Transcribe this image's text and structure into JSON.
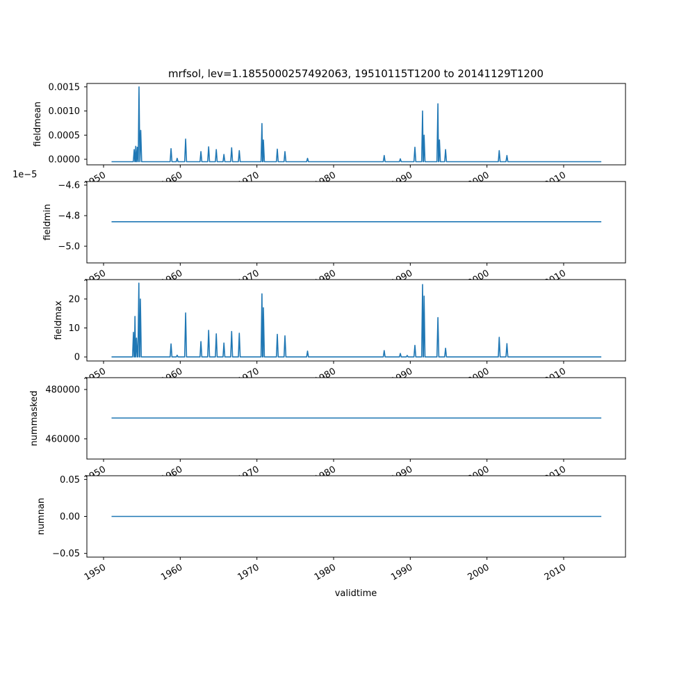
{
  "chart_data": {
    "type": "line",
    "title": "mrfsol, lev=1.1855000257492063, 19510115T1200 to 20141129T1200",
    "xlabel": "validtime",
    "x_ticks": [
      "1950",
      "1960",
      "1970",
      "1980",
      "1990",
      "2000",
      "2010"
    ],
    "x_tick_values": [
      1950,
      1960,
      1970,
      1980,
      1990,
      2000,
      2010
    ],
    "xlim": [
      1947.8,
      2018.0
    ],
    "x_range": [
      1951.04,
      2014.91
    ],
    "color": "#1f77b4",
    "panels": [
      {
        "ylabel": "fieldmean",
        "ylim": [
          -0.000115,
          0.00157
        ],
        "y_ticks": [
          0,
          0.0005,
          0.001,
          0.0015
        ],
        "y_tick_labels": [
          "0.0000",
          "0.0005",
          "0.0010",
          "0.0015"
        ],
        "offset_text": "",
        "baseline": -5e-05,
        "peaks": [
          [
            1954.0,
            0.0002
          ],
          [
            1954.2,
            0.00027
          ],
          [
            1954.4,
            0.00025
          ],
          [
            1954.62,
            0.0015
          ],
          [
            1954.85,
            0.0006
          ],
          [
            1958.8,
            0.00022
          ],
          [
            1959.6,
            2e-05
          ],
          [
            1960.7,
            0.00042
          ],
          [
            1962.7,
            0.00016
          ],
          [
            1963.7,
            0.00026
          ],
          [
            1964.7,
            0.0002
          ],
          [
            1965.7,
            0.0001
          ],
          [
            1966.7,
            0.00024
          ],
          [
            1967.7,
            0.00018
          ],
          [
            1970.66,
            0.00074
          ],
          [
            1970.85,
            0.0004
          ],
          [
            1972.66,
            0.00021
          ],
          [
            1973.66,
            0.00016
          ],
          [
            1976.6,
            2e-05
          ],
          [
            1986.6,
            8e-05
          ],
          [
            1988.7,
            1e-05
          ],
          [
            1990.6,
            0.00025
          ],
          [
            1991.6,
            0.001
          ],
          [
            1991.8,
            0.0005
          ],
          [
            1993.6,
            0.00115
          ],
          [
            1993.8,
            0.0004
          ],
          [
            1994.6,
            0.0002
          ],
          [
            2001.6,
            0.00018
          ],
          [
            2002.6,
            8e-05
          ]
        ]
      },
      {
        "ylabel": "fieldmin",
        "ylim": [
          -5.109,
          -4.577
        ],
        "y_ticks": [
          -5.0,
          -4.8,
          -4.6
        ],
        "y_tick_labels": [
          "−5.0",
          "−4.8",
          "−4.6"
        ],
        "offset_text": "1e−5",
        "baseline": -4.84,
        "peaks": []
      },
      {
        "ylabel": "fieldmax",
        "ylim": [
          -1.4,
          26.7
        ],
        "y_ticks": [
          0,
          10,
          20
        ],
        "y_tick_labels": [
          "0",
          "10",
          "20"
        ],
        "offset_text": "",
        "baseline": 0,
        "peaks": [
          [
            1953.9,
            8.5
          ],
          [
            1954.1,
            14
          ],
          [
            1954.3,
            6.5
          ],
          [
            1954.6,
            25.5
          ],
          [
            1954.8,
            20
          ],
          [
            1958.8,
            4.5
          ],
          [
            1959.6,
            0.6
          ],
          [
            1960.7,
            15.2
          ],
          [
            1962.7,
            5.3
          ],
          [
            1963.7,
            9.2
          ],
          [
            1964.7,
            8
          ],
          [
            1965.7,
            4.8
          ],
          [
            1966.7,
            8.8
          ],
          [
            1967.7,
            8.2
          ],
          [
            1970.66,
            21.8
          ],
          [
            1970.85,
            17
          ],
          [
            1972.66,
            7.8
          ],
          [
            1973.66,
            7.3
          ],
          [
            1976.6,
            2
          ],
          [
            1986.6,
            2.2
          ],
          [
            1988.7,
            1.2
          ],
          [
            1989.6,
            0.5
          ],
          [
            1990.6,
            4
          ],
          [
            1991.6,
            25
          ],
          [
            1991.8,
            21
          ],
          [
            1993.6,
            13.6
          ],
          [
            1994.6,
            3
          ],
          [
            2001.6,
            6.8
          ],
          [
            2002.6,
            4.6
          ]
        ]
      },
      {
        "ylabel": "nummasked",
        "ylim": [
          451800,
          484800
        ],
        "y_ticks": [
          460000,
          480000
        ],
        "y_tick_labels": [
          "460000",
          "480000"
        ],
        "offset_text": "",
        "baseline": 468450,
        "peaks": []
      },
      {
        "ylabel": "numnan",
        "ylim": [
          -0.055,
          0.055
        ],
        "y_ticks": [
          -0.05,
          0,
          0.05
        ],
        "y_tick_labels": [
          "−0.05",
          "0.00",
          "0.05"
        ],
        "offset_text": "",
        "baseline": 0,
        "peaks": []
      }
    ]
  }
}
